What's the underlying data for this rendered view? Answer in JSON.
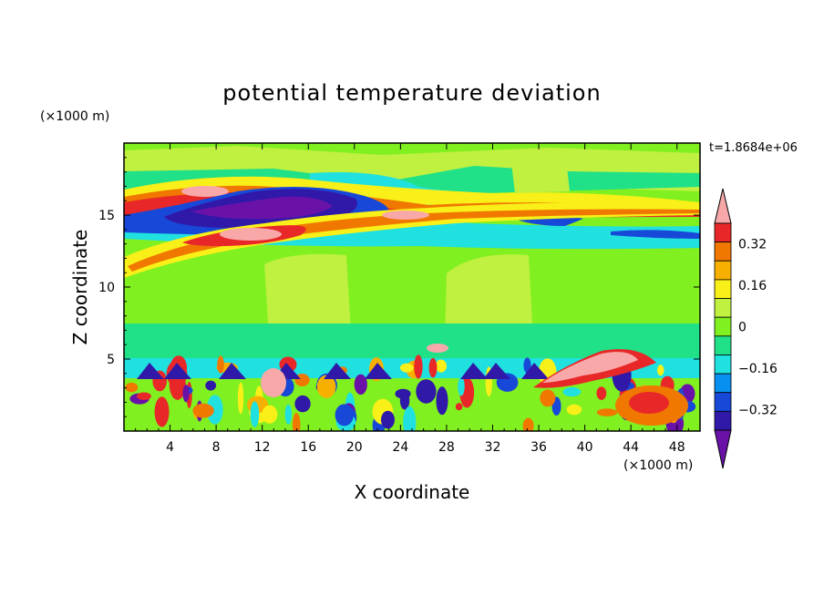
{
  "chart_data": {
    "type": "contour",
    "title": "potential temperature deviation",
    "xlabel": "X coordinate",
    "ylabel": "Z coordinate",
    "x_unit": "(×1000 m)",
    "z_unit": "(×1000 m)",
    "time_label": "t=1.8684e+06",
    "xlim": [
      0,
      50
    ],
    "ylim": [
      0,
      20
    ],
    "x_ticks": [
      "4",
      "8",
      "12",
      "16",
      "20",
      "24",
      "28",
      "32",
      "36",
      "40",
      "44",
      "48"
    ],
    "y_ticks": [
      "5",
      "10",
      "15"
    ],
    "colorbar": {
      "labels": [
        "0.32",
        "0.16",
        "0",
        "−0.16",
        "−0.32"
      ],
      "levels": [
        -0.48,
        -0.4,
        -0.32,
        -0.24,
        -0.16,
        -0.08,
        0,
        0.08,
        0.16,
        0.24,
        0.32,
        0.4,
        0.48
      ],
      "colors": [
        "#6a12a8",
        "#3018a8",
        "#1848d8",
        "#0890f0",
        "#20e0e0",
        "#20e088",
        "#80f020",
        "#c0f040",
        "#f8f018",
        "#f8b000",
        "#f07800",
        "#e82828",
        "#f8a8a8"
      ]
    },
    "background_color": "#80f020"
  }
}
